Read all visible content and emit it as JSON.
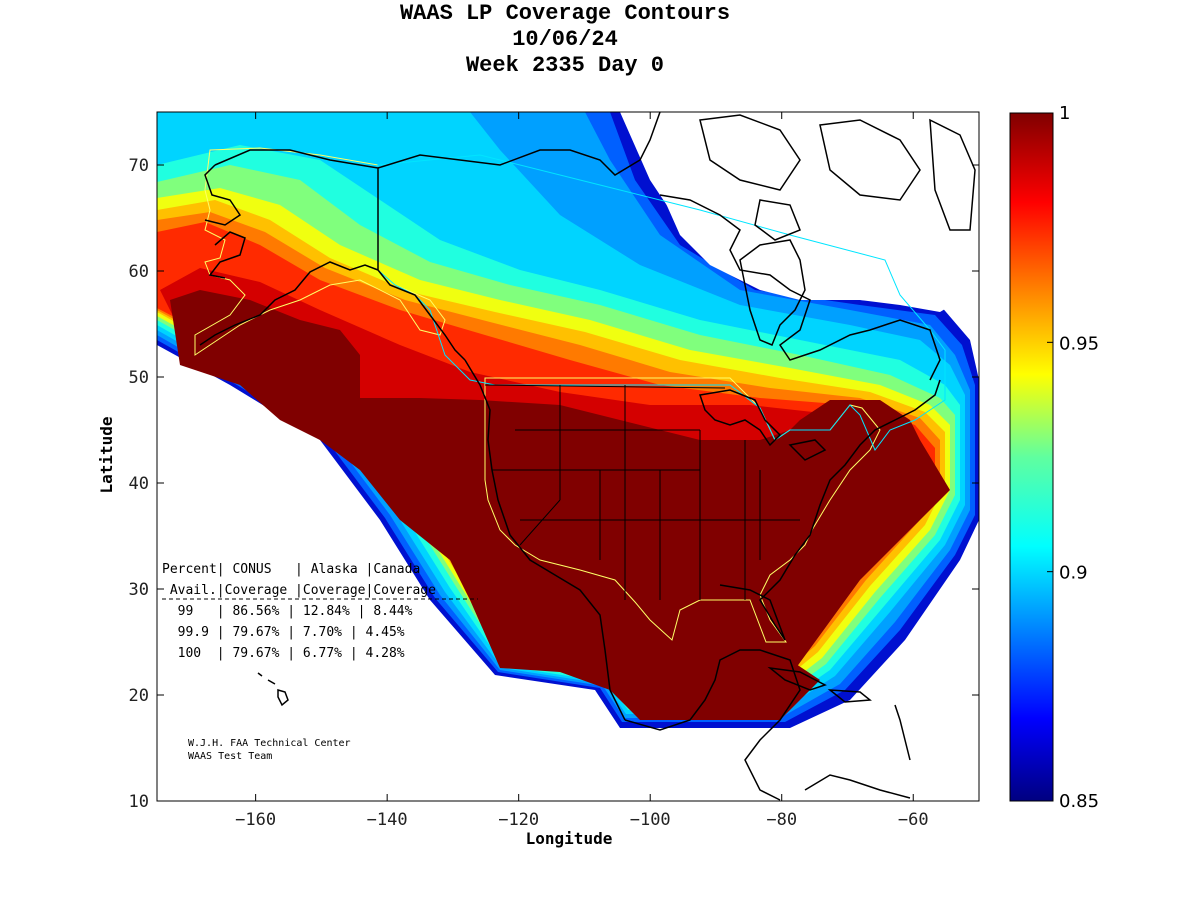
{
  "figure": {
    "title_line1": "WAAS LP Coverage Contours",
    "title_line2": "10/06/24",
    "title_line3": "Week 2335 Day 0"
  },
  "map": {
    "lon_range": [
      -175,
      -50
    ],
    "lat_range": [
      10,
      75
    ],
    "xlabel": "Longitude",
    "ylabel": "Latitude",
    "x_ticks": [
      -160,
      -140,
      -120,
      -100,
      -80,
      -60
    ],
    "y_ticks": [
      10,
      20,
      30,
      40,
      50,
      60,
      70
    ],
    "colors": {
      "c100": "#800000",
      "c098": "#d40000",
      "c097": "#ff2a00",
      "c096": "#ff7a00",
      "c095": "#ffc000",
      "c094": "#f0ff10",
      "c093": "#80ff7d",
      "c092": "#20ffe0",
      "c091": "#00d4ff",
      "c090": "#00a0ff",
      "c088": "#0060ff",
      "c086": "#0010d0",
      "no_coverage": "#ffffff",
      "coastline": "#000000",
      "service_volume_conus": "#ffff66",
      "service_volume_alaska": "#ffff66",
      "service_volume_canada": "#00e5ff"
    }
  },
  "colorbar": {
    "min": 0.85,
    "max": 1,
    "tick_values": [
      0.85,
      0.9,
      0.95,
      1
    ],
    "tick_labels": [
      "0.85",
      "0.9",
      "0.95",
      "1"
    ]
  },
  "coverage_table": {
    "header_line1": "Percent| CONUS   | Alaska |Canada",
    "header_line2": " Avail.|Coverage |Coverage|Coverage",
    "rows": [
      "  99   | 86.56% | 12.84% | 8.44%",
      "  99.9 | 79.67% | 7.70% | 4.45%",
      "  100  | 79.67% | 6.77% | 4.28%"
    ],
    "values": [
      {
        "percent_avail": 99,
        "conus": 86.56,
        "alaska": 12.84,
        "canada": 8.44
      },
      {
        "percent_avail": 99.9,
        "conus": 79.67,
        "alaska": 7.7,
        "canada": 4.45
      },
      {
        "percent_avail": 100,
        "conus": 79.67,
        "alaska": 6.77,
        "canada": 4.28
      }
    ]
  },
  "credits": {
    "line1": "W.J.H. FAA Technical Center",
    "line2": "WAAS Test Team"
  }
}
